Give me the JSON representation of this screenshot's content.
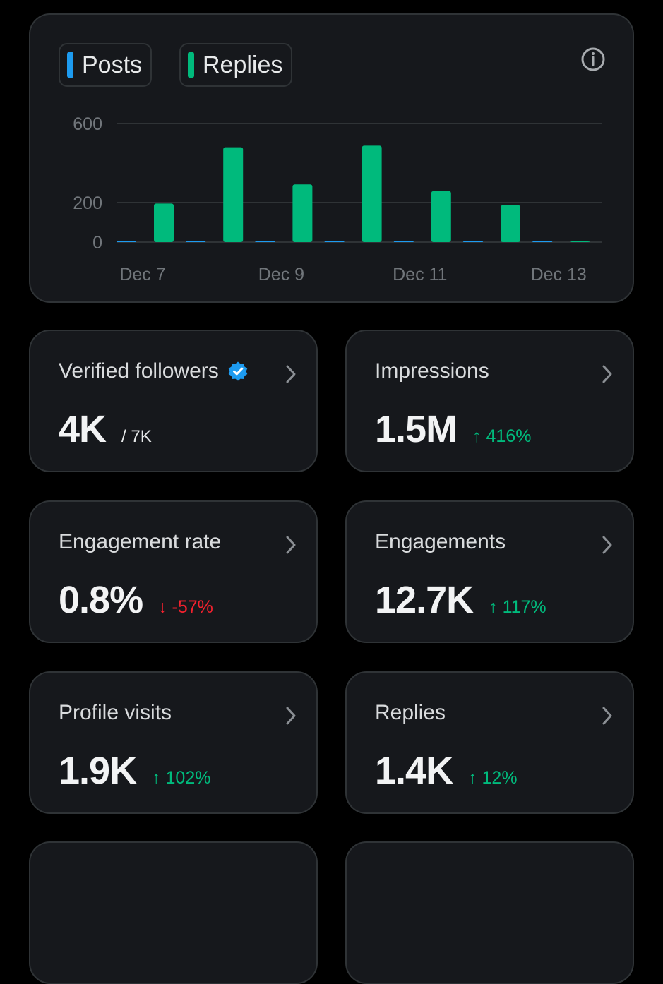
{
  "chart": {
    "legend": [
      {
        "label": "Posts",
        "color": "#1d9bf0"
      },
      {
        "label": "Replies",
        "color": "#00ba7c"
      }
    ],
    "info_icon": "info-icon"
  },
  "chart_data": {
    "type": "bar",
    "categories": [
      "Dec 7",
      "Dec 8",
      "Dec 9",
      "Dec 10",
      "Dec 11",
      "Dec 12",
      "Dec 13"
    ],
    "x_tick_labels": [
      "Dec 7",
      "Dec 9",
      "Dec 11",
      "Dec 13"
    ],
    "y_ticks": [
      "600",
      "200",
      "0"
    ],
    "ylim": [
      0,
      600
    ],
    "series": [
      {
        "name": "Posts",
        "color": "#1d9bf0",
        "values": [
          2,
          4,
          3,
          6,
          3,
          2,
          1
        ]
      },
      {
        "name": "Replies",
        "color": "#00ba7c",
        "values": [
          195,
          480,
          292,
          488,
          258,
          187,
          0
        ]
      }
    ],
    "grid": true
  },
  "stats": [
    {
      "title": "Verified followers",
      "verified_icon": true,
      "value": "4K",
      "sub": "/ 7K",
      "change": "",
      "direction": ""
    },
    {
      "title": "Impressions",
      "verified_icon": false,
      "value": "1.5M",
      "sub": "",
      "change": "416%",
      "direction": "up"
    },
    {
      "title": "Engagement rate",
      "verified_icon": false,
      "value": "0.8%",
      "sub": "",
      "change": "-57%",
      "direction": "down"
    },
    {
      "title": "Engagements",
      "verified_icon": false,
      "value": "12.7K",
      "sub": "",
      "change": "117%",
      "direction": "up"
    },
    {
      "title": "Profile visits",
      "verified_icon": false,
      "value": "1.9K",
      "sub": "",
      "change": "102%",
      "direction": "up"
    },
    {
      "title": "Replies",
      "verified_icon": false,
      "value": "1.4K",
      "sub": "",
      "change": "12%",
      "direction": "up"
    }
  ],
  "colors": {
    "up": "#00ba7c",
    "down": "#f4212e",
    "grid": "#2f3336",
    "axis_text": "#71767b"
  }
}
